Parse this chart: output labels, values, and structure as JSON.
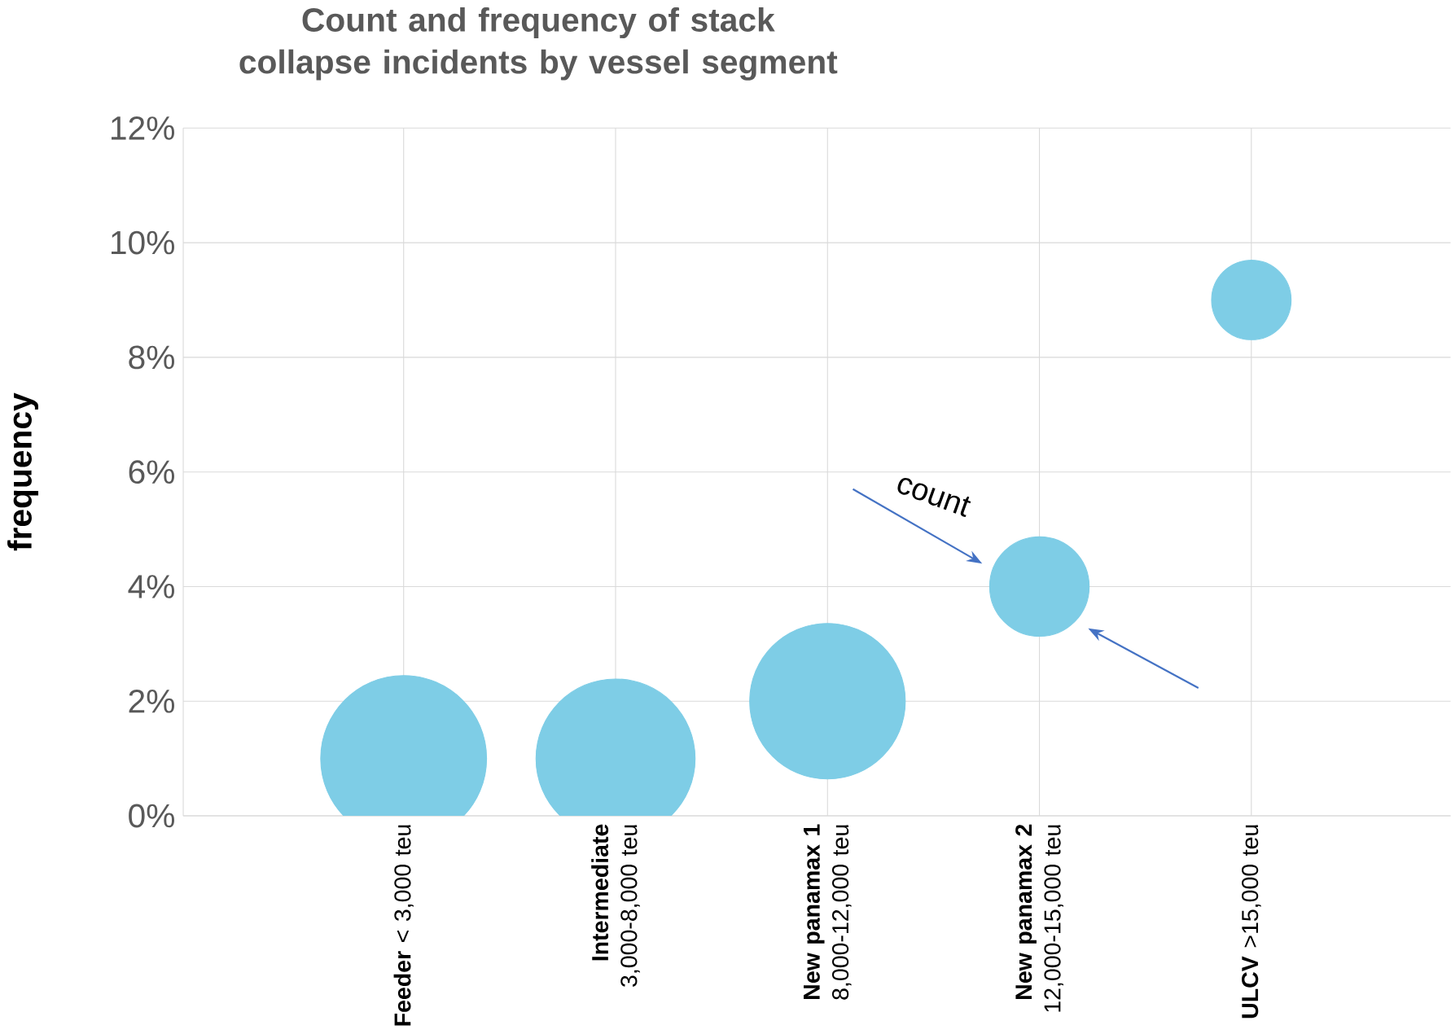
{
  "chart_data": {
    "type": "bubble",
    "title": "Count and frequency of stack collapse incidents by vessel segment",
    "ylabel": "frequency",
    "categories": [
      "**Feeder** < 3,000 teu",
      "**Intermediate** 3,000-8,000 teu",
      "**New panamax 1** 8,000-12,000 teu",
      "**New panamax 2** 12,000-15,000 teu",
      "**ULCV** >15,000 teu"
    ],
    "values": [
      1,
      1,
      2,
      4,
      9
    ],
    "sizes": [
      1,
      0.92,
      0.88,
      0.36,
      0.23
    ],
    "color": "#7ecde6",
    "ylim": [
      0,
      12
    ],
    "yticks": [
      {
        "value": 0,
        "label": "0%"
      },
      {
        "value": 2,
        "label": "2%"
      },
      {
        "value": 4,
        "label": "4%"
      },
      {
        "value": 6,
        "label": "6%"
      },
      {
        "value": 8,
        "label": "8%"
      },
      {
        "value": 10,
        "label": "10%"
      },
      {
        "value": 12,
        "label": "12%"
      }
    ],
    "grid": true,
    "annotations": [
      "count"
    ]
  }
}
